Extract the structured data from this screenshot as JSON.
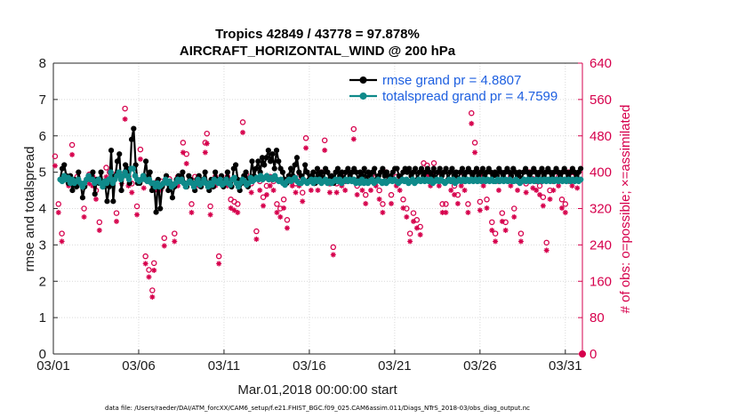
{
  "chart_data": {
    "type": "line",
    "title_line1": "Tropics 42849 / 43778 = 97.878%",
    "title_line2": "AIRCRAFT_HORIZONTAL_WIND @ 200 hPa",
    "xlabel": "Mar.01,2018 00:00:00 start",
    "ylabel": "rmse and totalspread",
    "y2label": "# of obs: o=possible; ×=assimilated",
    "footer": "data file: /Users/raeder/DAI/ATM_forcXX/CAM6_setup/f.e21.FHIST_BGC.f09_025.CAM6assim.011/Diags_NTrS_2018-03/obs_diag_output.nc",
    "x_tick_labels": [
      "03/01",
      "03/06",
      "03/11",
      "03/16",
      "03/21",
      "03/26",
      "03/31"
    ],
    "x_tick_days": [
      1,
      6,
      11,
      16,
      21,
      26,
      31
    ],
    "xlim": [
      1,
      32
    ],
    "ylim": [
      0,
      8
    ],
    "y_ticks": [
      "0",
      "1",
      "2",
      "3",
      "4",
      "5",
      "6",
      "7",
      "8"
    ],
    "y2lim": [
      0,
      640
    ],
    "y2_ticks": [
      "0",
      "80",
      "160",
      "240",
      "320",
      "400",
      "480",
      "560",
      "640"
    ],
    "colors": {
      "rmse": "#000000",
      "spread": "#0f8a8a",
      "obs": "#d6004c",
      "legend_text": "#1d5fe0"
    },
    "legend": [
      {
        "label": "rmse grand pr = 4.8807",
        "series": "rmse"
      },
      {
        "label": "totalspread grand pr = 4.7599",
        "series": "spread"
      }
    ],
    "series": [
      {
        "name": "rmse",
        "values": [
          4.8,
          5.1,
          5.2,
          4.9,
          4.7,
          4.9,
          4.5,
          4.8,
          4.6,
          5.0,
          4.7,
          4.3,
          4.6,
          4.8,
          4.9,
          4.8,
          5.0,
          4.4,
          4.8,
          4.7,
          5.0,
          4.6,
          4.7,
          4.2,
          4.6,
          5.6,
          4.2,
          4.9,
          5.3,
          5.5,
          4.5,
          4.9,
          5.2,
          5.1,
          4.7,
          5.9,
          6.2,
          5.2,
          4.7,
          4.7,
          4.8,
          4.9,
          5.3,
          4.8,
          5.0,
          4.5,
          4.7,
          3.9,
          4.8,
          4.0,
          4.6,
          4.7,
          4.9,
          4.5,
          4.7,
          4.3,
          4.6,
          4.8,
          4.9,
          4.8,
          5.0,
          4.7,
          4.6,
          4.9,
          4.8,
          4.7,
          4.5,
          4.8,
          4.9,
          4.6,
          4.8,
          5.0,
          4.7,
          4.5,
          4.8,
          4.6,
          5.0,
          4.8,
          4.7,
          4.9,
          4.6,
          4.8,
          5.0,
          4.7,
          4.6,
          5.1,
          5.2,
          4.8,
          4.5,
          4.7,
          4.9,
          5.0,
          4.6,
          4.8,
          5.3,
          4.9,
          5.1,
          5.3,
          5.0,
          5.4,
          5.2,
          5.4,
          5.6,
          5.3,
          5.5,
          5.1,
          5.6,
          5.3,
          5.1,
          5.0,
          4.8,
          4.7,
          4.9,
          5.1,
          4.9,
          5.2,
          5.4,
          5.0,
          4.9,
          4.8,
          5.2,
          5.0,
          4.8,
          4.9,
          5.0,
          4.7,
          5.1,
          4.9,
          5.0,
          4.8,
          5.1,
          5.0,
          4.8,
          4.9,
          4.7,
          5.0,
          5.1,
          4.9,
          5.0,
          4.8,
          5.0,
          5.1,
          4.9,
          5.0,
          5.1,
          5.0,
          4.8,
          5.0,
          4.9,
          5.1,
          4.8,
          5.0,
          4.9,
          5.0,
          5.1,
          4.8,
          4.9,
          5.0,
          5.1,
          4.9,
          5.0,
          4.8,
          4.9,
          5.0,
          5.1,
          5.1,
          4.9,
          4.8,
          5.0,
          5.1,
          5.0,
          5.1,
          4.9,
          5.0,
          5.1,
          4.8,
          5.0,
          5.1,
          4.9,
          5.0,
          5.1,
          5.0,
          4.9,
          5.1,
          4.8,
          5.0,
          5.1,
          4.9,
          5.0,
          5.1,
          4.8,
          5.0,
          5.1,
          4.9,
          5.0,
          4.8,
          5.0,
          5.1,
          4.9,
          5.0,
          5.1,
          5.0,
          4.9,
          5.0,
          5.1,
          4.9,
          5.0,
          5.1,
          4.9,
          5.0,
          5.1,
          5.0,
          4.9,
          5.0,
          4.9,
          5.1,
          5.0,
          4.9,
          5.0,
          5.1,
          5.0,
          4.9,
          5.1,
          5.0,
          4.9,
          5.0,
          4.8,
          5.0,
          5.1,
          5.0,
          4.9,
          5.0,
          5.1,
          5.0,
          4.9,
          5.0,
          5.1,
          4.9,
          5.0,
          5.1,
          5.0,
          4.9,
          5.0,
          5.1,
          5.0,
          4.9,
          5.0,
          5.1,
          5.0,
          4.9,
          5.0,
          5.1,
          5.0,
          4.9,
          5.0,
          5.1
        ]
      },
      {
        "name": "totalspread",
        "values": [
          4.8,
          4.75,
          4.9,
          4.8,
          4.85,
          4.7,
          4.8,
          4.7,
          4.75,
          4.8,
          4.7,
          4.6,
          4.7,
          4.8,
          4.9,
          4.8,
          4.8,
          4.7,
          4.75,
          4.8,
          4.7,
          4.6,
          4.75,
          4.7,
          4.8,
          5.0,
          4.7,
          4.8,
          4.9,
          5.0,
          4.8,
          4.9,
          5.0,
          4.9,
          4.8,
          5.1,
          5.1,
          4.9,
          4.8,
          4.75,
          4.8,
          4.9,
          4.8,
          4.75,
          4.8,
          4.7,
          4.7,
          4.6,
          4.7,
          4.6,
          4.65,
          4.7,
          4.8,
          4.7,
          4.75,
          4.6,
          4.65,
          4.7,
          4.8,
          4.75,
          4.8,
          4.7,
          4.6,
          4.7,
          4.75,
          4.7,
          4.6,
          4.7,
          4.8,
          4.65,
          4.7,
          4.8,
          4.7,
          4.6,
          4.7,
          4.65,
          4.8,
          4.75,
          4.7,
          4.8,
          4.65,
          4.7,
          4.8,
          4.7,
          4.65,
          4.8,
          4.85,
          4.7,
          4.6,
          4.7,
          4.8,
          4.75,
          4.65,
          4.7,
          4.85,
          4.75,
          4.8,
          4.85,
          4.8,
          4.9,
          4.8,
          4.85,
          4.9,
          4.8,
          4.85,
          4.8,
          4.9,
          4.8,
          4.75,
          4.8,
          4.7,
          4.65,
          4.75,
          4.8,
          4.75,
          4.8,
          4.85,
          4.75,
          4.7,
          4.7,
          4.8,
          4.75,
          4.7,
          4.75,
          4.8,
          4.7,
          4.8,
          4.75,
          4.8,
          4.7,
          4.75,
          4.8,
          4.7,
          4.75,
          4.7,
          4.75,
          4.8,
          4.75,
          4.8,
          4.7,
          4.75,
          4.8,
          4.75,
          4.8,
          4.75,
          4.8,
          4.7,
          4.75,
          4.7,
          4.8,
          4.7,
          4.75,
          4.7,
          4.75,
          4.8,
          4.7,
          4.75,
          4.8,
          4.75,
          4.7,
          4.75,
          4.7,
          4.75,
          4.8,
          4.75,
          4.8,
          4.75,
          4.7,
          4.75,
          4.8,
          4.75,
          4.8,
          4.7,
          4.75,
          4.8,
          4.7,
          4.75,
          4.8,
          4.75,
          4.8,
          4.75,
          4.8,
          4.75,
          4.8,
          4.7,
          4.75,
          4.8,
          4.75,
          4.8,
          4.75,
          4.7,
          4.75,
          4.8,
          4.75,
          4.8,
          4.7,
          4.75,
          4.8,
          4.75,
          4.8,
          4.75,
          4.8,
          4.75,
          4.8,
          4.75,
          4.8,
          4.75,
          4.8,
          4.75,
          4.8,
          4.75,
          4.8,
          4.75,
          4.8,
          4.75,
          4.75,
          4.8,
          4.75,
          4.8,
          4.75,
          4.8,
          4.75,
          4.8,
          4.75,
          4.75,
          4.8,
          4.75,
          4.7,
          4.75,
          4.8,
          4.75,
          4.8,
          4.75,
          4.8,
          4.75,
          4.8,
          4.75,
          4.8,
          4.75,
          4.8,
          4.75,
          4.8,
          4.75,
          4.8,
          4.75,
          4.8,
          4.75,
          4.8,
          4.75,
          4.8,
          4.75,
          4.8,
          4.75,
          4.8,
          4.75,
          4.8,
          4.75,
          4.8
        ]
      }
    ],
    "obs_possible": [
      {
        "day": 1.1,
        "n": 435
      },
      {
        "day": 1.3,
        "n": 330
      },
      {
        "day": 1.5,
        "n": 265
      },
      {
        "day": 1.9,
        "n": 390
      },
      {
        "day": 2.1,
        "n": 460
      },
      {
        "day": 2.4,
        "n": 390
      },
      {
        "day": 2.8,
        "n": 320
      },
      {
        "day": 3.1,
        "n": 395
      },
      {
        "day": 3.3,
        "n": 390
      },
      {
        "day": 3.5,
        "n": 360
      },
      {
        "day": 3.7,
        "n": 290
      },
      {
        "day": 4.1,
        "n": 410
      },
      {
        "day": 4.3,
        "n": 400
      },
      {
        "day": 4.5,
        "n": 395
      },
      {
        "day": 4.7,
        "n": 310
      },
      {
        "day": 5.0,
        "n": 395
      },
      {
        "day": 5.2,
        "n": 540
      },
      {
        "day": 5.4,
        "n": 390
      },
      {
        "day": 5.6,
        "n": 375
      },
      {
        "day": 5.9,
        "n": 325
      },
      {
        "day": 6.1,
        "n": 450
      },
      {
        "day": 6.3,
        "n": 385
      },
      {
        "day": 6.4,
        "n": 215
      },
      {
        "day": 6.6,
        "n": 185
      },
      {
        "day": 6.8,
        "n": 140
      },
      {
        "day": 6.9,
        "n": 200
      },
      {
        "day": 7.1,
        "n": 380
      },
      {
        "day": 7.3,
        "n": 380
      },
      {
        "day": 7.5,
        "n": 255
      },
      {
        "day": 7.8,
        "n": 385
      },
      {
        "day": 8.1,
        "n": 265
      },
      {
        "day": 8.3,
        "n": 390
      },
      {
        "day": 8.6,
        "n": 465
      },
      {
        "day": 8.8,
        "n": 440
      },
      {
        "day": 9.1,
        "n": 330
      },
      {
        "day": 9.3,
        "n": 390
      },
      {
        "day": 9.5,
        "n": 390
      },
      {
        "day": 9.9,
        "n": 465
      },
      {
        "day": 10.0,
        "n": 485
      },
      {
        "day": 10.2,
        "n": 325
      },
      {
        "day": 10.5,
        "n": 390
      },
      {
        "day": 10.7,
        "n": 215
      },
      {
        "day": 11.2,
        "n": 390
      },
      {
        "day": 11.4,
        "n": 340
      },
      {
        "day": 11.6,
        "n": 335
      },
      {
        "day": 11.8,
        "n": 330
      },
      {
        "day": 12.1,
        "n": 510
      },
      {
        "day": 12.3,
        "n": 395
      },
      {
        "day": 12.6,
        "n": 375
      },
      {
        "day": 12.9,
        "n": 270
      },
      {
        "day": 13.1,
        "n": 380
      },
      {
        "day": 13.3,
        "n": 345
      },
      {
        "day": 13.5,
        "n": 370
      },
      {
        "day": 13.7,
        "n": 390
      },
      {
        "day": 13.9,
        "n": 380
      },
      {
        "day": 14.1,
        "n": 330
      },
      {
        "day": 14.3,
        "n": 320
      },
      {
        "day": 14.5,
        "n": 340
      },
      {
        "day": 14.7,
        "n": 295
      },
      {
        "day": 15.0,
        "n": 390
      },
      {
        "day": 15.2,
        "n": 375
      },
      {
        "day": 15.4,
        "n": 390
      },
      {
        "day": 15.6,
        "n": 355
      },
      {
        "day": 15.8,
        "n": 475
      },
      {
        "day": 16.1,
        "n": 380
      },
      {
        "day": 16.3,
        "n": 395
      },
      {
        "day": 16.5,
        "n": 380
      },
      {
        "day": 16.7,
        "n": 400
      },
      {
        "day": 16.9,
        "n": 470
      },
      {
        "day": 17.2,
        "n": 375
      },
      {
        "day": 17.4,
        "n": 235
      },
      {
        "day": 17.6,
        "n": 375
      },
      {
        "day": 17.9,
        "n": 390
      },
      {
        "day": 18.1,
        "n": 380
      },
      {
        "day": 18.3,
        "n": 400
      },
      {
        "day": 18.6,
        "n": 495
      },
      {
        "day": 18.8,
        "n": 370
      },
      {
        "day": 19.1,
        "n": 380
      },
      {
        "day": 19.3,
        "n": 350
      },
      {
        "day": 19.6,
        "n": 380
      },
      {
        "day": 19.9,
        "n": 390
      },
      {
        "day": 20.1,
        "n": 360
      },
      {
        "day": 20.3,
        "n": 330
      },
      {
        "day": 20.5,
        "n": 400
      },
      {
        "day": 20.8,
        "n": 350
      },
      {
        "day": 21.1,
        "n": 390
      },
      {
        "day": 21.3,
        "n": 380
      },
      {
        "day": 21.5,
        "n": 340
      },
      {
        "day": 21.7,
        "n": 320
      },
      {
        "day": 21.9,
        "n": 265
      },
      {
        "day": 22.1,
        "n": 310
      },
      {
        "day": 22.3,
        "n": 295
      },
      {
        "day": 22.5,
        "n": 280
      },
      {
        "day": 22.7,
        "n": 420
      },
      {
        "day": 22.9,
        "n": 415
      },
      {
        "day": 23.1,
        "n": 390
      },
      {
        "day": 23.3,
        "n": 420
      },
      {
        "day": 23.6,
        "n": 390
      },
      {
        "day": 23.8,
        "n": 330
      },
      {
        "day": 24.0,
        "n": 330
      },
      {
        "day": 24.3,
        "n": 380
      },
      {
        "day": 24.5,
        "n": 370
      },
      {
        "day": 24.7,
        "n": 350
      },
      {
        "day": 24.9,
        "n": 390
      },
      {
        "day": 25.1,
        "n": 380
      },
      {
        "day": 25.3,
        "n": 330
      },
      {
        "day": 25.5,
        "n": 530
      },
      {
        "day": 25.7,
        "n": 465
      },
      {
        "day": 25.9,
        "n": 400
      },
      {
        "day": 26.0,
        "n": 335
      },
      {
        "day": 26.2,
        "n": 390
      },
      {
        "day": 26.4,
        "n": 340
      },
      {
        "day": 26.7,
        "n": 290
      },
      {
        "day": 26.9,
        "n": 265
      },
      {
        "day": 27.1,
        "n": 380
      },
      {
        "day": 27.3,
        "n": 310
      },
      {
        "day": 27.5,
        "n": 290
      },
      {
        "day": 27.8,
        "n": 390
      },
      {
        "day": 28.0,
        "n": 320
      },
      {
        "day": 28.2,
        "n": 380
      },
      {
        "day": 28.4,
        "n": 265
      },
      {
        "day": 28.7,
        "n": 375
      },
      {
        "day": 28.9,
        "n": 400
      },
      {
        "day": 29.1,
        "n": 385
      },
      {
        "day": 29.3,
        "n": 380
      },
      {
        "day": 29.5,
        "n": 370
      },
      {
        "day": 29.7,
        "n": 345
      },
      {
        "day": 29.9,
        "n": 245
      },
      {
        "day": 30.1,
        "n": 360
      },
      {
        "day": 30.3,
        "n": 380
      },
      {
        "day": 30.6,
        "n": 390
      },
      {
        "day": 30.8,
        "n": 340
      },
      {
        "day": 31.0,
        "n": 330
      },
      {
        "day": 31.2,
        "n": 400
      },
      {
        "day": 31.4,
        "n": 390
      },
      {
        "day": 31.7,
        "n": 385
      }
    ],
    "assim_fraction": 0.979
  }
}
